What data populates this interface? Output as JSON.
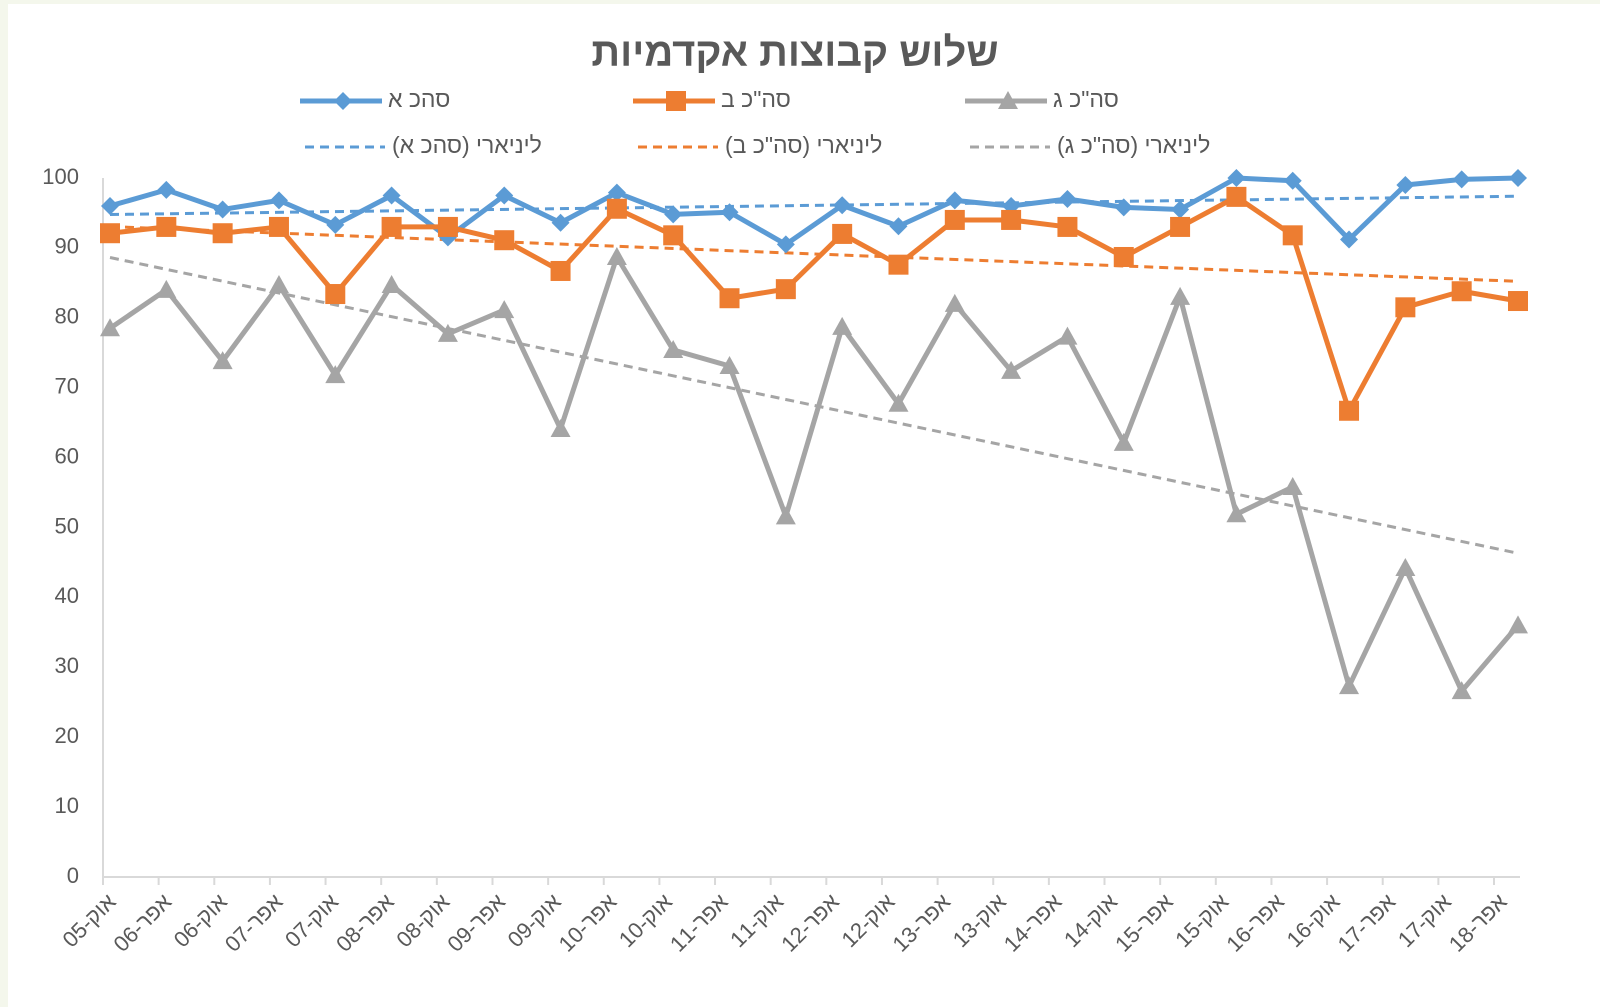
{
  "chart_data": {
    "type": "line",
    "title": "שלוש קבוצות אקדמיות",
    "categories": [
      "אוק-05",
      "אפר-06",
      "אוק-06",
      "אפר-07",
      "אוק-07",
      "אפר-08",
      "אוק-08",
      "אפר-09",
      "אוק-09",
      "אפר-10",
      "אוק-10",
      "אפר-11",
      "אוק-11",
      "אפר-12",
      "אוק-12",
      "אפר-13",
      "אוק-13",
      "אפר-14",
      "אוק-14",
      "אפר-15",
      "אוק-15",
      "אפר-16",
      "אוק-16",
      "אפר-17",
      "אוק-17",
      "אפר-18"
    ],
    "series": [
      {
        "name": "סהכ א",
        "color": "#5b9bd5",
        "marker": "diamond",
        "values": [
          96,
          98.3,
          95.5,
          96.8,
          93.3,
          97.5,
          91.5,
          97.5,
          93.6,
          97.9,
          94.8,
          95.1,
          90.5,
          96.1,
          93.1,
          96.8,
          96,
          97,
          95.8,
          95.5,
          100,
          99.6,
          91.2,
          99,
          99.8,
          100
        ]
      },
      {
        "name": "סה\"כ ב",
        "color": "#ed7d31",
        "marker": "square",
        "values": [
          92.1,
          93,
          92.1,
          93,
          83.4,
          93,
          93,
          91.1,
          86.7,
          95.6,
          91.8,
          82.8,
          84.1,
          92,
          87.6,
          94,
          94,
          93,
          88.7,
          93,
          97.3,
          91.8,
          66.7,
          81.5,
          83.8,
          82.4
        ]
      },
      {
        "name": "סה\"כ ג",
        "color": "#a5a5a5",
        "marker": "triangle",
        "values": [
          78.5,
          84,
          73.8,
          84.7,
          71.8,
          84.7,
          77.7,
          81.1,
          64.1,
          88.7,
          75.4,
          73.1,
          51.6,
          78.7,
          67.7,
          82,
          72.4,
          77.3,
          62.1,
          83,
          51.9,
          55.8,
          27.3,
          44.2,
          26.6,
          36
        ]
      }
    ],
    "trendlines": [
      {
        "name": "ליניארי (סהכ א)",
        "color": "#5b9bd5"
      },
      {
        "name": "ליניארי (סה\"כ ב)",
        "color": "#ed7d31"
      },
      {
        "name": "ליניארי (סה\"כ ג)",
        "color": "#a5a5a5"
      }
    ],
    "ylim": [
      0,
      100
    ],
    "yticks": [
      0,
      10,
      20,
      30,
      40,
      50,
      60,
      70,
      80,
      90,
      100
    ],
    "grid": false
  }
}
